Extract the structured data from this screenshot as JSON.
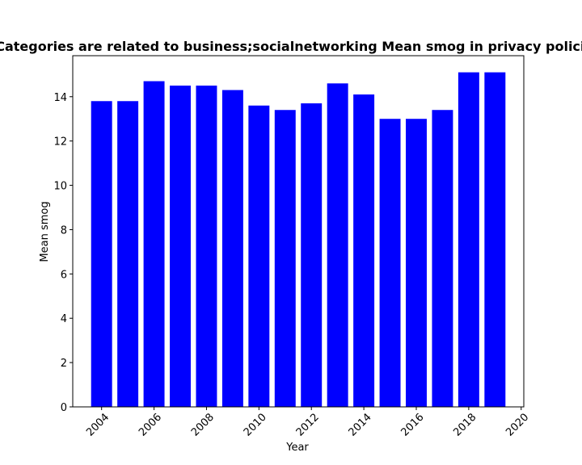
{
  "chart_data": {
    "type": "bar",
    "title": "Categories are related to business;socialnetworking Mean smog in privacy policies",
    "xlabel": "Year",
    "ylabel": "Mean smog",
    "bar_color": "#0000ff",
    "x": [
      2004,
      2005,
      2006,
      2007,
      2008,
      2009,
      2010,
      2011,
      2012,
      2013,
      2014,
      2015,
      2016,
      2017,
      2018,
      2019
    ],
    "values": [
      13.8,
      13.8,
      14.7,
      14.5,
      14.5,
      14.3,
      13.6,
      13.4,
      13.7,
      14.6,
      14.1,
      13.0,
      13.0,
      13.4,
      15.1,
      15.1
    ],
    "xlim": [
      2002.9,
      2020.1
    ],
    "ylim": [
      0,
      15.85
    ],
    "xticks": [
      2004,
      2006,
      2008,
      2010,
      2012,
      2014,
      2016,
      2018,
      2020
    ],
    "yticks": [
      0,
      2,
      4,
      6,
      8,
      10,
      12,
      14
    ],
    "grid": false,
    "legend": "none"
  }
}
